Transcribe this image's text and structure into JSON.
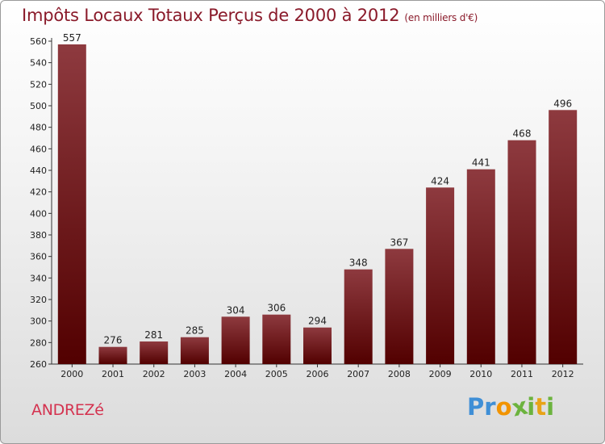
{
  "header": {
    "title": "Impôts Locaux Totaux Perçus de 2000 à 2012",
    "unit": "(en milliers d'€)"
  },
  "footer": {
    "commune": "ANDREZé",
    "logo": {
      "text": "Proxiti",
      "letters": [
        "P",
        "r",
        "o",
        "x",
        "i",
        "t",
        "i"
      ]
    }
  },
  "colors": {
    "title": "#8a1a2a",
    "bar_top": "#8e3a3f",
    "bar_bottom": "#520000",
    "commune": "#d4324f",
    "logo_letters": [
      "#3f8fd6",
      "#3f8fd6",
      "#f29400",
      "#6cb33e",
      "#6cb33e",
      "#e8a317",
      "#6cb33e"
    ]
  },
  "chart_data": {
    "type": "bar",
    "title": "Impôts Locaux Totaux Perçus de 2000 à 2012",
    "xlabel": "",
    "ylabel": "",
    "categories": [
      "2000",
      "2001",
      "2002",
      "2003",
      "2004",
      "2005",
      "2006",
      "2007",
      "2008",
      "2009",
      "2010",
      "2011",
      "2012"
    ],
    "values": [
      557,
      276,
      281,
      285,
      304,
      306,
      294,
      348,
      367,
      424,
      441,
      468,
      496
    ],
    "ylim": [
      260,
      560
    ],
    "yticks": [
      260,
      280,
      300,
      320,
      340,
      360,
      380,
      400,
      420,
      440,
      460,
      480,
      500,
      520,
      540,
      560
    ],
    "grid": false,
    "legend": "none"
  }
}
